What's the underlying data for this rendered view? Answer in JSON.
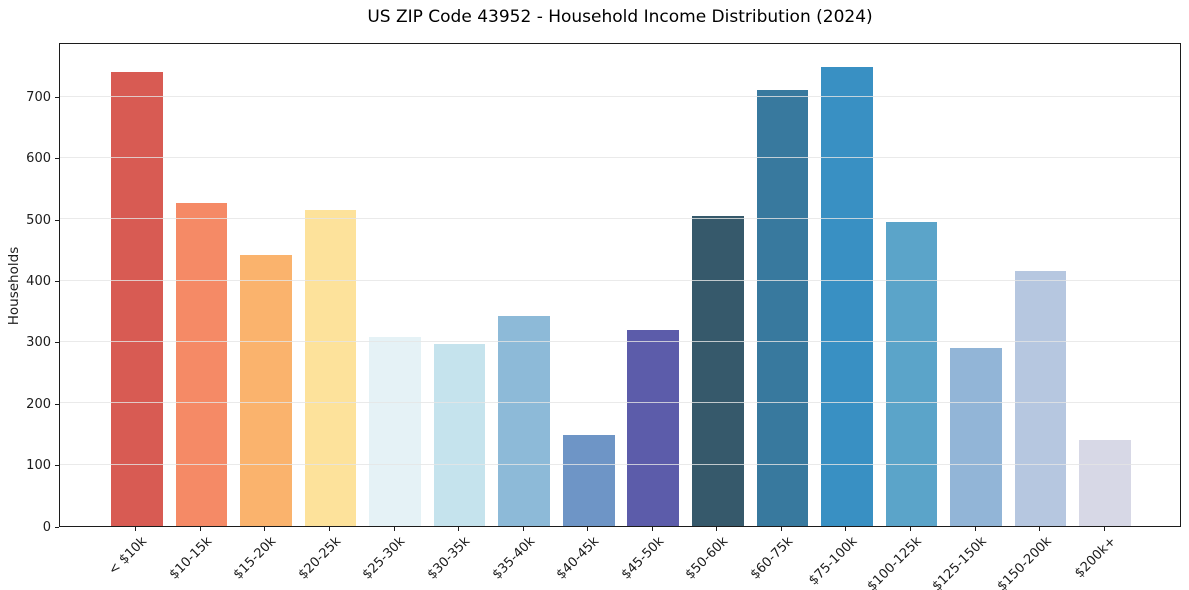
{
  "chart_data": {
    "type": "bar",
    "title": "US ZIP Code 43952 - Household Income Distribution (2024)",
    "xlabel": "",
    "ylabel": "Households",
    "categories": [
      "< $10k",
      "$10-15k",
      "$15-20k",
      "$20-25k",
      "$25-30k",
      "$30-35k",
      "$35-40k",
      "$40-45k",
      "$45-50k",
      "$50-60k",
      "$60-75k",
      "$75-100k",
      "$100-125k",
      "$125-150k",
      "$150-200k",
      "$200k+"
    ],
    "values": [
      740,
      527,
      441,
      515,
      308,
      297,
      342,
      148,
      319,
      505,
      710,
      748,
      496,
      290,
      416,
      140
    ],
    "bar_colors": [
      "#d85b53",
      "#f58a66",
      "#fab36d",
      "#fde29b",
      "#e5f2f6",
      "#c5e3ed",
      "#8dbad8",
      "#6e95c6",
      "#5c5caa",
      "#36596b",
      "#38799e",
      "#3990c3",
      "#5ba4c9",
      "#92b5d7",
      "#b6c7e0",
      "#d7d8e6"
    ],
    "yticks": [
      0,
      100,
      200,
      300,
      400,
      500,
      600,
      700
    ],
    "ylim": [
      0,
      789
    ],
    "grid": "horizontal",
    "legend": "none",
    "background_color": "#ffffff",
    "axis_color": "#1c1c1c",
    "grid_color": "#e5e5e5"
  }
}
